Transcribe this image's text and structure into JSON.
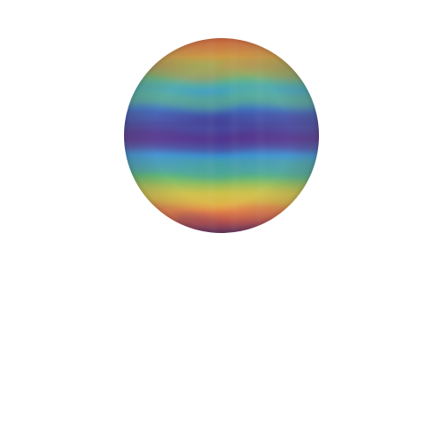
{
  "scene": {
    "background_color": "#ffffff",
    "subject": "striped-sphere",
    "band_colors": [
      "#e8734a",
      "#6cc26a",
      "#3a8fd0",
      "#4a2f86",
      "#3a8fd0",
      "#6cc26a",
      "#f2b24a",
      "#d65f4f",
      "#6b3b6e"
    ]
  }
}
